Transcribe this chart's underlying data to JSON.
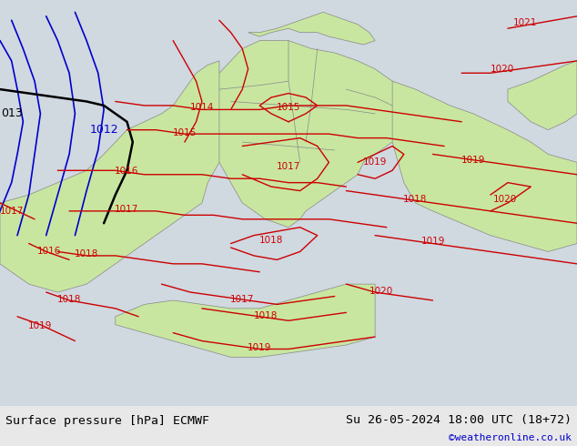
{
  "title_left": "Surface pressure [hPa] ECMWF",
  "title_right": "Su 26-05-2024 18:00 UTC (18+72)",
  "copyright": "©weatheronline.co.uk",
  "bg_color": "#d0d8e0",
  "land_color": "#c8e6a0",
  "border_color": "#888888",
  "isobar_color_red": "#cc0000",
  "isobar_color_blue": "#0000cc",
  "isobar_color_black": "#000000",
  "label_color_red": "#cc0000",
  "label_color_blue": "#0000cc",
  "label_color_black": "#000000",
  "bottom_bar_color": "#e8e8e8",
  "copyright_color": "#0000cc",
  "bottom_text_color": "#000000",
  "figsize": [
    6.34,
    4.9
  ],
  "dpi": 100
}
